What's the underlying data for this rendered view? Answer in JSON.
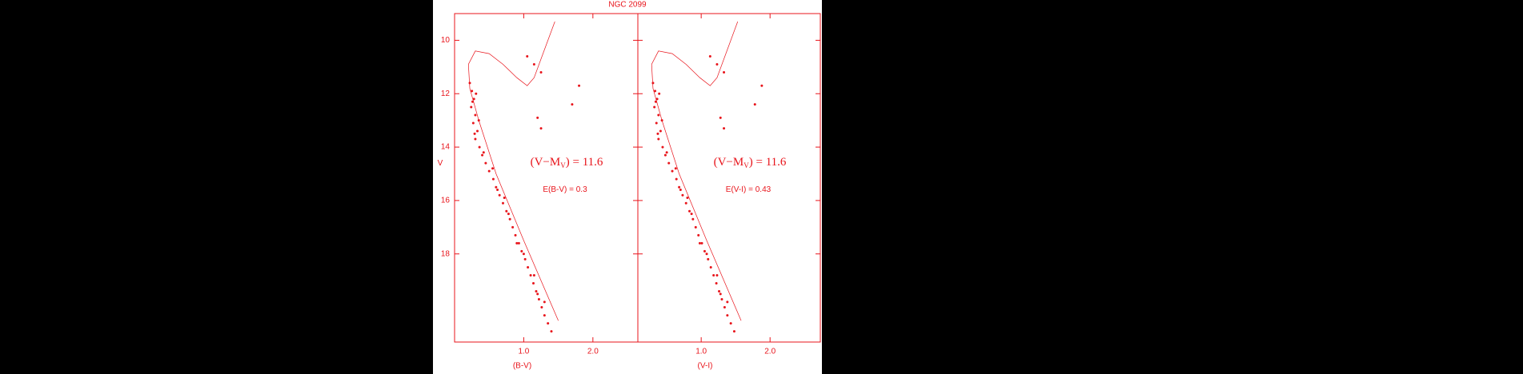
{
  "title": "NGC 2099",
  "chart_data": [
    {
      "type": "scatter",
      "xlabel": "(B-V)",
      "ylabel": "V",
      "xlim": [
        0,
        2.65
      ],
      "ylim": [
        9,
        21.3
      ],
      "y_inverted": true,
      "show_ytick_labels": true,
      "xticks": [
        {
          "value": 1,
          "label": "1.0"
        },
        {
          "value": 2,
          "label": "2.0"
        }
      ],
      "yticks": [
        10,
        12,
        14,
        16,
        18
      ],
      "annotation": {
        "prefix": "(V−M",
        "subscript": "V",
        "suffix": ") = 11.6",
        "note": "E(B-V) = 0.3"
      },
      "series": [
        {
          "mode": "markers",
          "color": "#e8141b",
          "x": [
            0.22,
            0.25,
            0.28,
            0.24,
            0.3,
            0.27,
            0.33,
            0.3,
            0.36,
            0.4,
            0.45,
            0.5,
            0.56,
            0.6,
            0.65,
            0.7,
            0.75,
            0.8,
            0.84,
            0.88,
            0.93,
            0.97,
            1.02,
            1.06,
            1.1,
            1.14,
            1.18,
            1.22,
            1.26,
            1.3,
            1.35,
            1.4,
            0.31,
            0.35,
            0.55,
            0.72,
            0.9,
            1.15,
            1.3,
            1.05,
            1.15,
            1.25,
            1.8,
            1.7,
            1.2,
            1.25,
            0.26,
            0.29,
            0.42,
            0.62,
            0.78,
            1.0,
            1.2
          ],
          "y": [
            11.6,
            11.9,
            12.2,
            12.5,
            12.8,
            13.1,
            13.4,
            13.7,
            14.0,
            14.3,
            14.6,
            14.9,
            15.2,
            15.5,
            15.8,
            16.1,
            16.4,
            16.7,
            17.0,
            17.3,
            17.6,
            17.9,
            18.2,
            18.5,
            18.8,
            19.1,
            19.4,
            19.7,
            20.0,
            20.3,
            20.6,
            20.9,
            12.0,
            13.0,
            14.8,
            15.9,
            17.6,
            18.8,
            19.8,
            10.6,
            10.9,
            11.2,
            11.7,
            12.4,
            12.9,
            13.3,
            12.3,
            13.5,
            14.2,
            15.6,
            16.5,
            18.0,
            19.5
          ]
        },
        {
          "mode": "lines",
          "color": "#e8141b",
          "x": [
            1.5,
            1.0,
            0.6,
            0.35,
            0.22,
            0.2,
            0.3,
            0.5,
            0.7,
            0.9,
            1.05,
            1.15,
            1.25,
            1.35,
            1.45
          ],
          "y": [
            20.5,
            17.5,
            15.0,
            13.0,
            11.8,
            10.9,
            10.4,
            10.5,
            10.9,
            11.4,
            11.7,
            11.4,
            10.7,
            10.0,
            9.3
          ]
        }
      ]
    },
    {
      "type": "scatter",
      "xlabel": "(V-I)",
      "xlim": [
        0.08,
        2.73
      ],
      "ylim": [
        9,
        21.3
      ],
      "y_inverted": true,
      "show_ytick_labels": false,
      "xticks": [
        {
          "value": 1,
          "label": "1.0"
        },
        {
          "value": 2,
          "label": "2.0"
        }
      ],
      "yticks": [
        10,
        12,
        14,
        16,
        18
      ],
      "annotation": {
        "prefix": "(V−M",
        "subscript": "V",
        "suffix": ") = 11.6",
        "note": "E(V-I) = 0.43"
      },
      "series": [
        {
          "mode": "markers",
          "color": "#e8141b",
          "x": [
            0.3,
            0.33,
            0.36,
            0.32,
            0.38,
            0.35,
            0.41,
            0.38,
            0.44,
            0.48,
            0.53,
            0.58,
            0.64,
            0.68,
            0.73,
            0.78,
            0.83,
            0.88,
            0.92,
            0.96,
            1.01,
            1.05,
            1.1,
            1.14,
            1.18,
            1.22,
            1.26,
            1.3,
            1.34,
            1.38,
            1.43,
            1.48,
            0.39,
            0.43,
            0.63,
            0.8,
            0.98,
            1.23,
            1.38,
            1.13,
            1.23,
            1.33,
            1.88,
            1.78,
            1.28,
            1.33,
            0.34,
            0.37,
            0.5,
            0.7,
            0.86,
            1.08,
            1.28
          ],
          "y": [
            11.6,
            11.9,
            12.2,
            12.5,
            12.8,
            13.1,
            13.4,
            13.7,
            14.0,
            14.3,
            14.6,
            14.9,
            15.2,
            15.5,
            15.8,
            16.1,
            16.4,
            16.7,
            17.0,
            17.3,
            17.6,
            17.9,
            18.2,
            18.5,
            18.8,
            19.1,
            19.4,
            19.7,
            20.0,
            20.3,
            20.6,
            20.9,
            12.0,
            13.0,
            14.8,
            15.9,
            17.6,
            18.8,
            19.8,
            10.6,
            10.9,
            11.2,
            11.7,
            12.4,
            12.9,
            13.3,
            12.3,
            13.5,
            14.2,
            15.6,
            16.5,
            18.0,
            19.5
          ]
        },
        {
          "mode": "lines",
          "color": "#e8141b",
          "x": [
            1.58,
            1.08,
            0.68,
            0.43,
            0.3,
            0.28,
            0.38,
            0.58,
            0.78,
            0.98,
            1.13,
            1.23,
            1.33,
            1.43,
            1.53
          ],
          "y": [
            20.5,
            17.5,
            15.0,
            13.0,
            11.8,
            10.9,
            10.4,
            10.5,
            10.9,
            11.4,
            11.7,
            11.4,
            10.7,
            10.0,
            9.3
          ]
        }
      ]
    }
  ]
}
